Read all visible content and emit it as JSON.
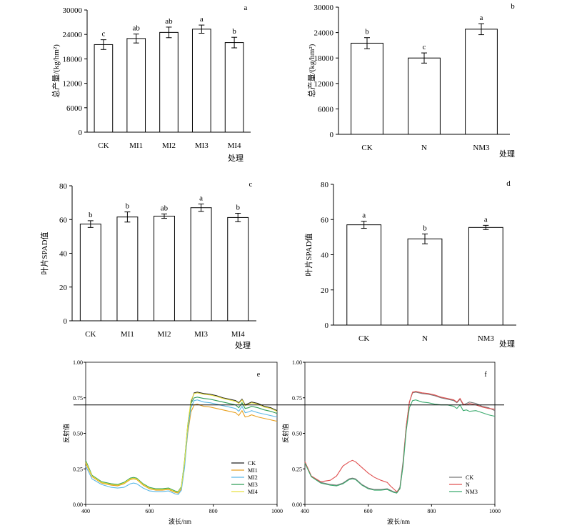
{
  "chart_data": [
    {
      "panel_label": "a",
      "type": "bar",
      "ylabel": "总产量/(kg/hm²)",
      "xlabel": "处理",
      "ylim": [
        0,
        30000
      ],
      "yticks": [
        0,
        6000,
        12000,
        18000,
        24000,
        30000
      ],
      "categories": [
        "CK",
        "MI1",
        "MI2",
        "MI3",
        "MI4"
      ],
      "values": [
        21500,
        23000,
        24500,
        25300,
        22000
      ],
      "errors": [
        1200,
        1100,
        1300,
        1000,
        1300
      ],
      "letters": [
        "c",
        "ab",
        "ab",
        "a",
        "b"
      ]
    },
    {
      "panel_label": "b",
      "type": "bar",
      "ylabel": "总产量/(kg/hm²)",
      "xlabel": "处理",
      "ylim": [
        0,
        30000
      ],
      "yticks": [
        0,
        6000,
        12000,
        18000,
        24000,
        30000
      ],
      "categories": [
        "CK",
        "N",
        "NM3"
      ],
      "values": [
        21500,
        18000,
        24800
      ],
      "errors": [
        1300,
        1200,
        1300
      ],
      "letters": [
        "b",
        "c",
        "a"
      ]
    },
    {
      "panel_label": "c",
      "type": "bar",
      "ylabel": "叶片SPAD值",
      "xlabel": "处理",
      "ylim": [
        0,
        80
      ],
      "yticks": [
        0,
        20,
        40,
        60,
        80
      ],
      "categories": [
        "CK",
        "MI1",
        "MI2",
        "MI3",
        "MI4"
      ],
      "values": [
        57.3,
        61.5,
        62,
        67,
        61.2
      ],
      "errors": [
        2,
        3,
        1.3,
        2.2,
        2.5
      ],
      "letters": [
        "b",
        "b",
        "ab",
        "a",
        "b"
      ]
    },
    {
      "panel_label": "d",
      "type": "bar",
      "ylabel": "叶片SPAD值",
      "xlabel": "处理",
      "ylim": [
        0,
        80
      ],
      "yticks": [
        0,
        20,
        40,
        60,
        80
      ],
      "categories": [
        "CK",
        "N",
        "NM3"
      ],
      "values": [
        57,
        49,
        55.5
      ],
      "errors": [
        2,
        2.8,
        1.2
      ],
      "letters": [
        "a",
        "b",
        "a"
      ]
    },
    {
      "panel_label": "e",
      "type": "line",
      "ylabel": "反射值",
      "xlabel": "波长/nm",
      "xlim": [
        400,
        1000
      ],
      "ylim": [
        0,
        1
      ],
      "xticks": [
        400,
        600,
        800,
        1000
      ],
      "yticks": [
        "0.00",
        "0.25",
        "0.50",
        "0.75",
        "1.00"
      ],
      "x": [
        400,
        420,
        450,
        480,
        500,
        520,
        540,
        550,
        560,
        580,
        600,
        620,
        640,
        660,
        670,
        680,
        690,
        700,
        710,
        720,
        730,
        740,
        750,
        770,
        790,
        810,
        830,
        850,
        870,
        880,
        890,
        900,
        910,
        920,
        940,
        960,
        980,
        1000
      ],
      "series": [
        {
          "name": "CK",
          "color": "#222222",
          "values": [
            0.3,
            0.2,
            0.155,
            0.14,
            0.135,
            0.15,
            0.18,
            0.185,
            0.18,
            0.14,
            0.115,
            0.105,
            0.105,
            0.11,
            0.1,
            0.09,
            0.085,
            0.12,
            0.3,
            0.55,
            0.72,
            0.785,
            0.79,
            0.78,
            0.775,
            0.765,
            0.75,
            0.74,
            0.73,
            0.715,
            0.74,
            0.7,
            0.71,
            0.72,
            0.71,
            0.69,
            0.68,
            0.66
          ]
        },
        {
          "name": "MI1",
          "color": "#E8A020",
          "values": [
            0.29,
            0.195,
            0.15,
            0.135,
            0.13,
            0.145,
            0.175,
            0.18,
            0.175,
            0.135,
            0.11,
            0.1,
            0.1,
            0.105,
            0.095,
            0.085,
            0.08,
            0.11,
            0.28,
            0.5,
            0.65,
            0.7,
            0.705,
            0.69,
            0.685,
            0.675,
            0.665,
            0.655,
            0.645,
            0.625,
            0.66,
            0.615,
            0.62,
            0.63,
            0.615,
            0.605,
            0.595,
            0.585
          ]
        },
        {
          "name": "MI2",
          "color": "#5BB8E6",
          "values": [
            0.27,
            0.18,
            0.14,
            0.12,
            0.115,
            0.12,
            0.145,
            0.15,
            0.145,
            0.115,
            0.095,
            0.09,
            0.09,
            0.095,
            0.085,
            0.075,
            0.07,
            0.1,
            0.26,
            0.52,
            0.68,
            0.73,
            0.735,
            0.72,
            0.715,
            0.705,
            0.695,
            0.685,
            0.675,
            0.655,
            0.69,
            0.645,
            0.65,
            0.66,
            0.645,
            0.635,
            0.625,
            0.615
          ]
        },
        {
          "name": "MI3",
          "color": "#2E9E57",
          "values": [
            0.31,
            0.205,
            0.16,
            0.145,
            0.14,
            0.155,
            0.185,
            0.19,
            0.185,
            0.145,
            0.12,
            0.11,
            0.11,
            0.115,
            0.105,
            0.095,
            0.09,
            0.125,
            0.31,
            0.56,
            0.71,
            0.75,
            0.755,
            0.745,
            0.74,
            0.73,
            0.72,
            0.71,
            0.7,
            0.68,
            0.715,
            0.675,
            0.68,
            0.69,
            0.68,
            0.665,
            0.655,
            0.64
          ]
        },
        {
          "name": "MI4",
          "color": "#E6E040",
          "values": [
            0.3,
            0.2,
            0.155,
            0.14,
            0.135,
            0.15,
            0.18,
            0.185,
            0.18,
            0.14,
            0.115,
            0.105,
            0.105,
            0.11,
            0.1,
            0.09,
            0.085,
            0.12,
            0.3,
            0.56,
            0.73,
            0.78,
            0.785,
            0.775,
            0.77,
            0.76,
            0.745,
            0.735,
            0.725,
            0.71,
            0.735,
            0.695,
            0.705,
            0.715,
            0.705,
            0.685,
            0.675,
            0.655
          ]
        }
      ],
      "legend_position": "bottom-right"
    },
    {
      "panel_label": "f",
      "type": "line",
      "ylabel": "反射值",
      "xlabel": "波长/nm",
      "xlim": [
        400,
        1000
      ],
      "ylim": [
        0,
        1
      ],
      "xticks": [
        400,
        600,
        800,
        1000
      ],
      "yticks": [
        "0.00",
        "0.25",
        "0.50",
        "0.75",
        "1.00"
      ],
      "x": [
        400,
        420,
        450,
        480,
        500,
        520,
        540,
        550,
        560,
        580,
        600,
        620,
        640,
        660,
        670,
        680,
        690,
        700,
        710,
        720,
        730,
        740,
        750,
        770,
        790,
        810,
        830,
        850,
        870,
        880,
        890,
        900,
        910,
        920,
        940,
        960,
        980,
        1000
      ],
      "series": [
        {
          "name": "CK",
          "color": "#777777",
          "values": [
            0.3,
            0.2,
            0.155,
            0.14,
            0.135,
            0.15,
            0.18,
            0.185,
            0.18,
            0.14,
            0.115,
            0.105,
            0.105,
            0.11,
            0.1,
            0.09,
            0.085,
            0.12,
            0.3,
            0.55,
            0.72,
            0.785,
            0.79,
            0.78,
            0.775,
            0.765,
            0.75,
            0.74,
            0.73,
            0.715,
            0.74,
            0.7,
            0.71,
            0.72,
            0.71,
            0.69,
            0.68,
            0.66
          ]
        },
        {
          "name": "N",
          "color": "#E05050",
          "values": [
            0.3,
            0.2,
            0.16,
            0.17,
            0.2,
            0.27,
            0.3,
            0.31,
            0.3,
            0.26,
            0.22,
            0.19,
            0.17,
            0.155,
            0.13,
            0.11,
            0.09,
            0.11,
            0.28,
            0.55,
            0.72,
            0.79,
            0.795,
            0.785,
            0.78,
            0.77,
            0.755,
            0.745,
            0.735,
            0.72,
            0.745,
            0.705,
            0.7,
            0.71,
            0.7,
            0.685,
            0.675,
            0.67
          ]
        },
        {
          "name": "NM3",
          "color": "#3BAA6E",
          "values": [
            0.29,
            0.195,
            0.15,
            0.135,
            0.13,
            0.145,
            0.175,
            0.18,
            0.175,
            0.135,
            0.11,
            0.1,
            0.1,
            0.105,
            0.095,
            0.085,
            0.08,
            0.11,
            0.27,
            0.52,
            0.68,
            0.73,
            0.735,
            0.72,
            0.715,
            0.705,
            0.7,
            0.7,
            0.69,
            0.675,
            0.7,
            0.66,
            0.665,
            0.655,
            0.66,
            0.645,
            0.63,
            0.62
          ]
        }
      ],
      "legend_position": "bottom-right"
    }
  ],
  "reference_line": {
    "y_value": 0.7,
    "color": "#000000"
  }
}
